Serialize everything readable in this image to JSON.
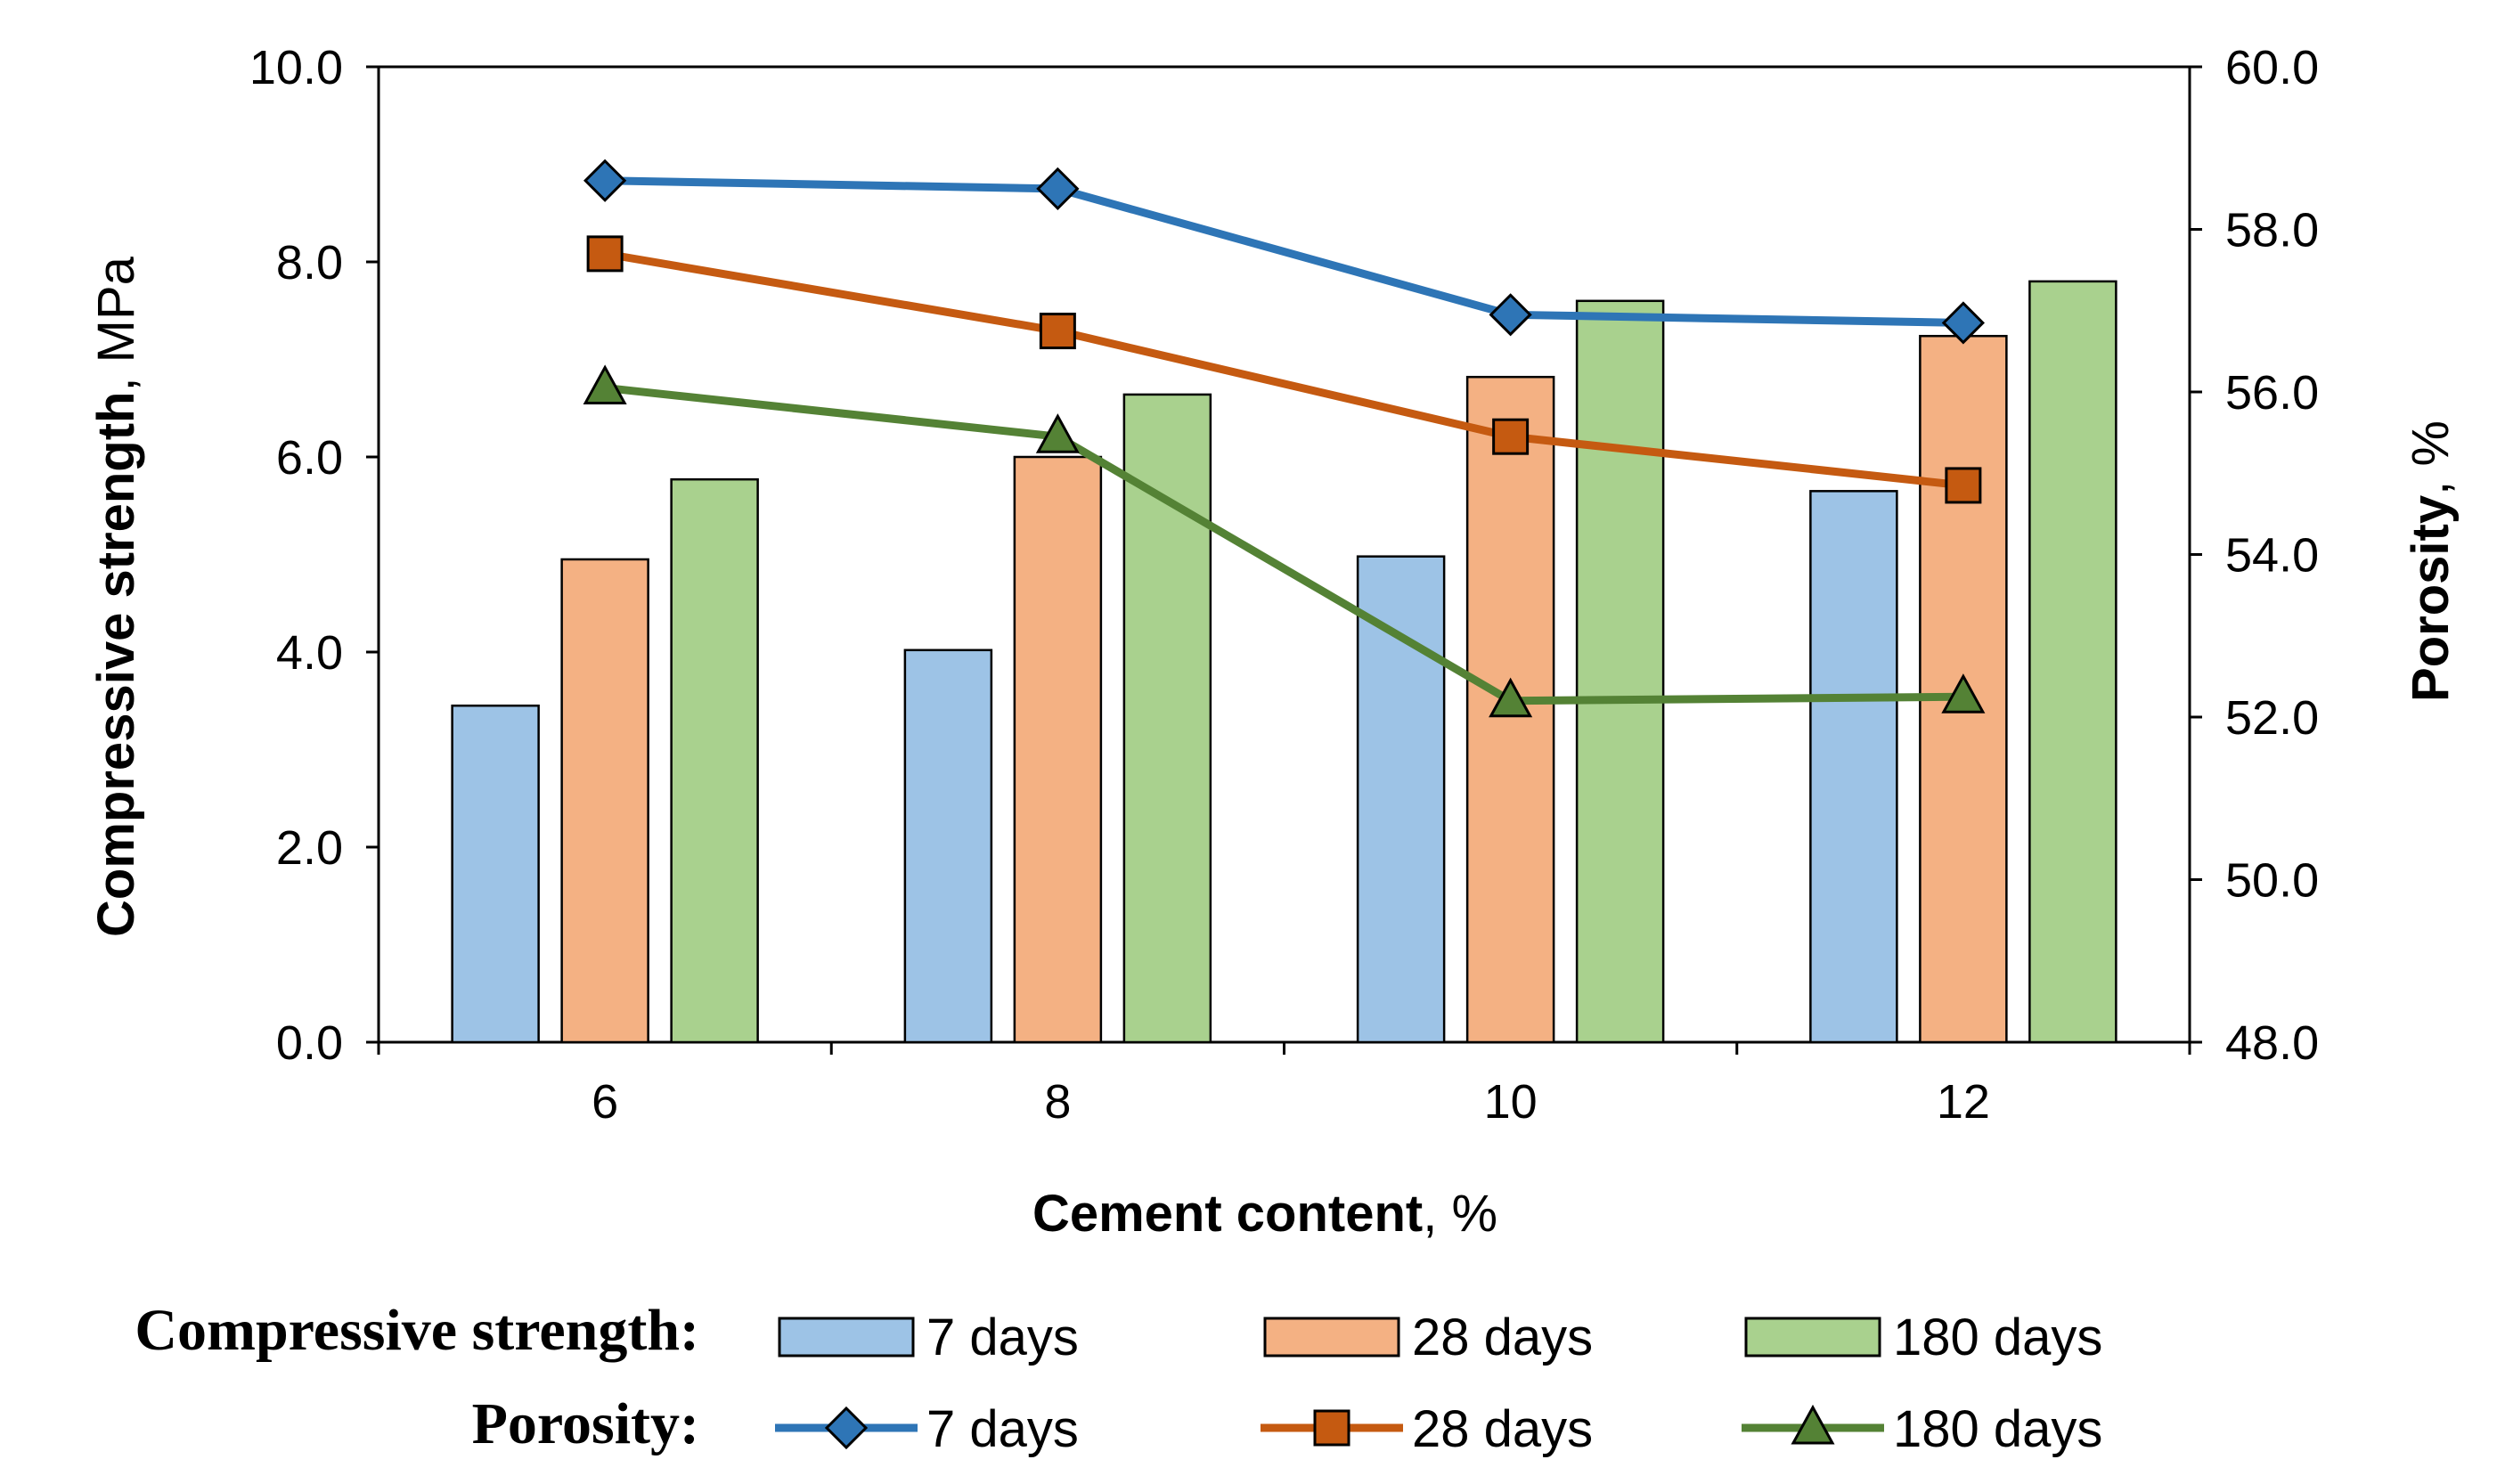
{
  "chart_data": {
    "type": "bar",
    "categories": [
      "6",
      "8",
      "10",
      "12"
    ],
    "x_axis": {
      "title_bold": "Cement content",
      "title_rest": ", %"
    },
    "y_left": {
      "title_bold": "Compressive strength",
      "title_rest": ", MPa",
      "ylim": [
        0,
        10
      ],
      "ticks": [
        "0.0",
        "2.0",
        "4.0",
        "6.0",
        "8.0",
        "10.0"
      ]
    },
    "y_right": {
      "title_bold": "Porosity",
      "title_rest": ", %",
      "ylim": [
        48,
        60
      ],
      "ticks": [
        "48.0",
        "50.0",
        "52.0",
        "54.0",
        "56.0",
        "58.0",
        "60.0"
      ]
    },
    "bar_series": [
      {
        "name": "7 days",
        "values": [
          3.45,
          4.02,
          4.98,
          5.65
        ],
        "color": "#9dc3e6"
      },
      {
        "name": "28 days",
        "values": [
          4.95,
          6.0,
          6.82,
          7.24
        ],
        "color": "#f4b183"
      },
      {
        "name": "180 days",
        "values": [
          5.77,
          6.64,
          7.6,
          7.8
        ],
        "color": "#a9d18e"
      }
    ],
    "line_series": [
      {
        "name": "7 days",
        "values": [
          58.6,
          58.5,
          56.95,
          56.85
        ],
        "color": "#2e75b6",
        "marker_fill": "#2e75b6",
        "marker": "diamond"
      },
      {
        "name": "28 days",
        "values": [
          57.7,
          56.75,
          55.45,
          54.85
        ],
        "color": "#c55a11",
        "marker_fill": "#c55a11",
        "marker": "square"
      },
      {
        "name": "180 days",
        "values": [
          56.05,
          55.45,
          52.2,
          52.25
        ],
        "color": "#548235",
        "marker_fill": "#548235",
        "marker": "triangle"
      }
    ],
    "legend": {
      "bars_heading": "Compressive strength:",
      "lines_heading": "Porosity:",
      "placement": "bottom"
    },
    "grid": false
  }
}
